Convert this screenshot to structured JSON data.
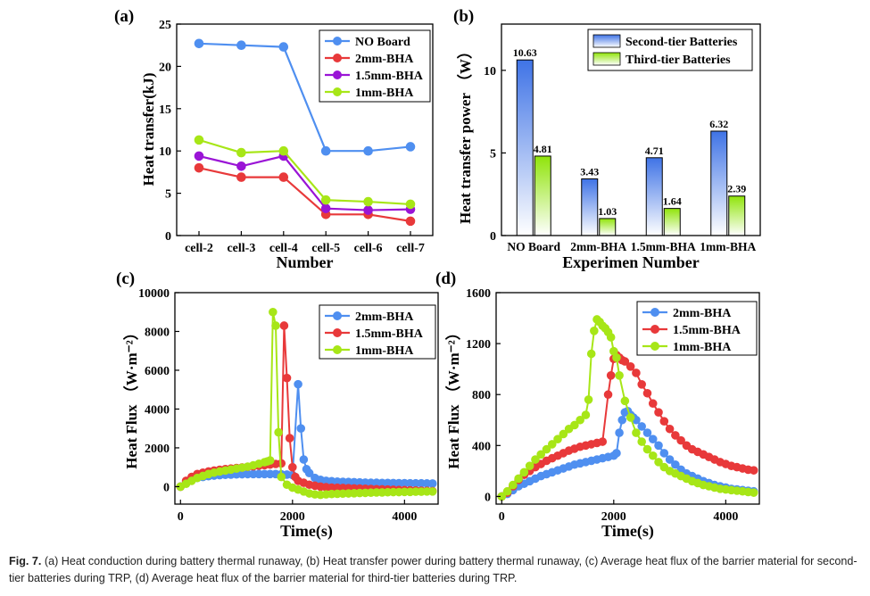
{
  "caption": {
    "label": "Fig. 7.",
    "text": "(a) Heat conduction during battery thermal runaway, (b) Heat transfer power during battery thermal runaway, (c) Average heat flux of the barrier material for second-tier batteries during TRP, (d) Average heat flux of the barrier material for third-tier batteries during TRP."
  },
  "colors": {
    "blue": "#4f8ff0",
    "red": "#e8393a",
    "purple": "#9a14d6",
    "lime": "#a7e617"
  },
  "chart_data": [
    {
      "panel": "(a)",
      "type": "line",
      "categories": [
        "cell-2",
        "cell-3",
        "cell-4",
        "cell-5",
        "cell-6",
        "cell-7"
      ],
      "xlabel": "Number",
      "ylabel": "Heat transfer(kJ)",
      "ylim": [
        0,
        25
      ],
      "yticks": [
        0,
        5,
        10,
        15,
        20,
        25
      ],
      "legend": "top-right",
      "series": [
        {
          "name": "NO Board",
          "color": "blue",
          "values": [
            22.7,
            22.5,
            22.3,
            10.0,
            10.0,
            10.5
          ]
        },
        {
          "name": "2mm-BHA",
          "color": "red",
          "values": [
            8.0,
            6.9,
            6.9,
            2.5,
            2.5,
            1.7
          ]
        },
        {
          "name": "1.5mm-BHA",
          "color": "purple",
          "values": [
            9.4,
            8.2,
            9.4,
            3.2,
            3.0,
            3.1
          ]
        },
        {
          "name": "1mm-BHA",
          "color": "lime",
          "values": [
            11.3,
            9.8,
            10.0,
            4.2,
            4.0,
            3.7
          ]
        }
      ]
    },
    {
      "panel": "(b)",
      "type": "bar",
      "categories": [
        "NO Board",
        "2mm-BHA",
        "1.5mm-BHA",
        "1mm-BHA"
      ],
      "xlabel": "Experimen Number",
      "ylabel": "Heat transfer power （W）",
      "ylim": [
        0,
        12.8
      ],
      "yticks": [
        0,
        5,
        10
      ],
      "legend": "top-right",
      "series": [
        {
          "name": "Second-tier Batteries",
          "color": "blue",
          "values": [
            10.63,
            3.43,
            4.71,
            6.32
          ],
          "labels": [
            "10.63",
            "3.43",
            "4.71",
            "6.32"
          ]
        },
        {
          "name": "Third-tier Batteries",
          "color": "lime",
          "values": [
            4.81,
            1.03,
            1.64,
            2.39
          ],
          "labels": [
            "4.81",
            "1.03",
            "1.64",
            "2.39"
          ]
        }
      ]
    },
    {
      "panel": "(c)",
      "type": "line",
      "xlabel": "Time(s)",
      "ylabel": "Heat Flux （W·m⁻²）",
      "xlim": [
        -100,
        4600
      ],
      "ylim": [
        -900,
        10000
      ],
      "xticks": [
        0,
        2000,
        4000
      ],
      "yticks": [
        0,
        2000,
        4000,
        6000,
        8000,
        10000
      ],
      "legend": "top-right",
      "series": [
        {
          "name": "2mm-BHA",
          "color": "blue",
          "x": [
            0,
            100,
            200,
            300,
            400,
            500,
            600,
            700,
            800,
            900,
            1000,
            1100,
            1200,
            1300,
            1400,
            1500,
            1600,
            1700,
            1800,
            1900,
            2000,
            2100,
            2150,
            2200,
            2250,
            2300,
            2400,
            2500,
            2600,
            2700,
            2800,
            2900,
            3000,
            3100,
            3200,
            3300,
            3400,
            3500,
            3600,
            3700,
            3800,
            3900,
            4000,
            4100,
            4200,
            4300,
            4400,
            4500
          ],
          "y": [
            0,
            200,
            350,
            450,
            500,
            540,
            570,
            590,
            610,
            620,
            630,
            640,
            645,
            650,
            650,
            650,
            650,
            650,
            640,
            620,
            600,
            5280,
            3000,
            1400,
            900,
            700,
            450,
            350,
            300,
            280,
            260,
            250,
            240,
            230,
            220,
            210,
            200,
            200,
            190,
            190,
            185,
            180,
            180,
            175,
            170,
            170,
            165,
            160
          ]
        },
        {
          "name": "1.5mm-BHA",
          "color": "red",
          "x": [
            0,
            100,
            200,
            300,
            400,
            500,
            600,
            700,
            800,
            900,
            1000,
            1100,
            1200,
            1300,
            1400,
            1500,
            1600,
            1700,
            1800,
            1850,
            1900,
            1950,
            2000,
            2050,
            2100,
            2200,
            2300,
            2400,
            2500,
            2600,
            2700,
            2800,
            2900,
            3000,
            3100,
            3200,
            3300,
            3400,
            3500,
            3600,
            3700,
            3800,
            3900,
            4000,
            4100,
            4200,
            4300,
            4400,
            4500
          ],
          "y": [
            0,
            300,
            500,
            650,
            720,
            780,
            830,
            870,
            900,
            930,
            960,
            990,
            1020,
            1050,
            1080,
            1110,
            1140,
            1170,
            1200,
            8300,
            5600,
            2500,
            1000,
            500,
            300,
            200,
            100,
            50,
            0,
            -30,
            -50,
            -60,
            -70,
            -80,
            -90,
            -100,
            -110,
            -120,
            -130,
            -140,
            -150,
            -160,
            -170,
            -180,
            -190,
            -200,
            -210,
            -220,
            -230
          ]
        },
        {
          "name": "1mm-BHA",
          "color": "lime",
          "x": [
            0,
            100,
            200,
            300,
            400,
            500,
            600,
            700,
            800,
            900,
            1000,
            1100,
            1200,
            1300,
            1400,
            1500,
            1550,
            1600,
            1650,
            1700,
            1750,
            1800,
            1900,
            2000,
            2100,
            2200,
            2300,
            2400,
            2500,
            2600,
            2700,
            2800,
            2900,
            3000,
            3100,
            3200,
            3300,
            3400,
            3500,
            3600,
            3700,
            3800,
            3900,
            4000,
            4100,
            4200,
            4300,
            4400,
            4500
          ],
          "y": [
            0,
            150,
            300,
            450,
            550,
            650,
            720,
            780,
            830,
            880,
            930,
            980,
            1030,
            1100,
            1180,
            1260,
            1300,
            1350,
            9000,
            8300,
            2800,
            500,
            100,
            -50,
            -150,
            -250,
            -350,
            -400,
            -420,
            -400,
            -380,
            -370,
            -360,
            -350,
            -340,
            -330,
            -320,
            -310,
            -300,
            -300,
            -290,
            -280,
            -280,
            -270,
            -270,
            -260,
            -260,
            -250,
            -250
          ]
        }
      ]
    },
    {
      "panel": "(d)",
      "type": "line",
      "xlabel": "Time(s)",
      "ylabel": "Heat Flux （W·m⁻²）",
      "xlim": [
        -100,
        4600
      ],
      "ylim": [
        -60,
        1600
      ],
      "xticks": [
        0,
        2000,
        4000
      ],
      "yticks": [
        0,
        400,
        800,
        1200,
        1600
      ],
      "legend": "top-right",
      "series": [
        {
          "name": "2mm-BHA",
          "color": "blue",
          "x": [
            0,
            100,
            200,
            300,
            400,
            500,
            600,
            700,
            800,
            900,
            1000,
            1100,
            1200,
            1300,
            1400,
            1500,
            1600,
            1700,
            1800,
            1900,
            2000,
            2050,
            2100,
            2150,
            2200,
            2250,
            2300,
            2350,
            2400,
            2500,
            2600,
            2700,
            2800,
            2900,
            3000,
            3100,
            3200,
            3300,
            3400,
            3500,
            3600,
            3700,
            3800,
            3900,
            4000,
            4100,
            4200,
            4300,
            4400,
            4500
          ],
          "y": [
            0,
            20,
            50,
            80,
            100,
            120,
            140,
            160,
            175,
            190,
            205,
            220,
            235,
            250,
            260,
            270,
            280,
            290,
            300,
            310,
            320,
            340,
            500,
            600,
            660,
            670,
            640,
            620,
            600,
            550,
            500,
            450,
            400,
            340,
            290,
            250,
            210,
            180,
            160,
            140,
            120,
            105,
            90,
            80,
            70,
            60,
            55,
            50,
            45,
            40
          ]
        },
        {
          "name": "1.5mm-BHA",
          "color": "red",
          "x": [
            0,
            100,
            200,
            300,
            400,
            500,
            600,
            700,
            800,
            900,
            1000,
            1100,
            1200,
            1300,
            1400,
            1500,
            1600,
            1700,
            1800,
            1900,
            1950,
            2000,
            2050,
            2100,
            2150,
            2200,
            2300,
            2400,
            2500,
            2600,
            2700,
            2800,
            2900,
            3000,
            3100,
            3200,
            3300,
            3400,
            3500,
            3600,
            3700,
            3800,
            3900,
            4000,
            4100,
            4200,
            4300,
            4400,
            4500
          ],
          "y": [
            0,
            30,
            80,
            130,
            170,
            200,
            230,
            255,
            280,
            300,
            320,
            340,
            360,
            375,
            390,
            400,
            410,
            420,
            430,
            800,
            950,
            1080,
            1110,
            1090,
            1070,
            1060,
            1020,
            970,
            880,
            810,
            730,
            660,
            590,
            530,
            480,
            440,
            400,
            370,
            350,
            330,
            310,
            290,
            270,
            255,
            240,
            230,
            220,
            210,
            205
          ]
        },
        {
          "name": "1mm-BHA",
          "color": "lime",
          "x": [
            0,
            100,
            200,
            300,
            400,
            500,
            600,
            700,
            800,
            900,
            1000,
            1100,
            1200,
            1300,
            1400,
            1500,
            1550,
            1600,
            1650,
            1700,
            1750,
            1800,
            1850,
            1900,
            1950,
            2000,
            2050,
            2100,
            2200,
            2300,
            2400,
            2500,
            2600,
            2700,
            2800,
            2900,
            3000,
            3100,
            3200,
            3300,
            3400,
            3500,
            3600,
            3700,
            3800,
            3900,
            4000,
            4100,
            4200,
            4300,
            4400,
            4500
          ],
          "y": [
            0,
            40,
            90,
            140,
            190,
            240,
            290,
            330,
            370,
            410,
            450,
            490,
            530,
            560,
            600,
            640,
            760,
            1120,
            1300,
            1390,
            1370,
            1340,
            1320,
            1290,
            1250,
            1140,
            1090,
            950,
            750,
            620,
            500,
            430,
            370,
            320,
            270,
            230,
            200,
            180,
            160,
            140,
            120,
            105,
            90,
            80,
            70,
            60,
            55,
            50,
            45,
            40,
            35,
            30
          ]
        }
      ]
    }
  ]
}
